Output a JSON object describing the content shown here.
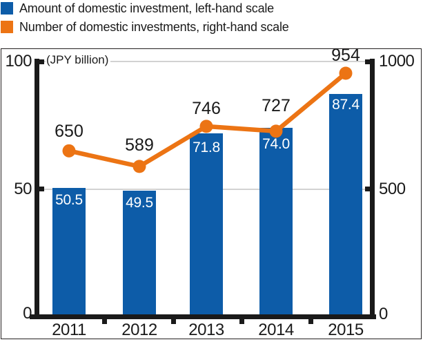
{
  "legend": {
    "items": [
      {
        "id": "amount",
        "label": "Amount of domestic investment, left-hand scale",
        "color": "#0d5ca8"
      },
      {
        "id": "number",
        "label": "Number of domestic investments, right-hand scale",
        "color": "#ec7414"
      }
    ]
  },
  "chart_data": {
    "type": "bar+line",
    "unit_label": "(JPY billion)",
    "categories": [
      "2011",
      "2012",
      "2013",
      "2014",
      "2015"
    ],
    "series": [
      {
        "name": "Amount of domestic investment",
        "type": "bar",
        "axis": "left",
        "color": "#0d5ca8",
        "value_label_color": "#ffffff",
        "values": [
          50.5,
          49.5,
          71.8,
          74.0,
          87.4
        ]
      },
      {
        "name": "Number of domestic investments",
        "type": "line",
        "axis": "right",
        "color": "#ec7414",
        "values": [
          650,
          589,
          746,
          727,
          954
        ]
      }
    ],
    "left_axis": {
      "range": [
        0,
        100
      ],
      "ticks": [
        0,
        50,
        100
      ]
    },
    "right_axis": {
      "range": [
        0,
        1000
      ],
      "ticks": [
        0,
        500,
        1000
      ]
    },
    "grid": true,
    "legend_position": "top-left",
    "colors": {
      "axis": "#1a1a1a",
      "gridline": "#d2d2d2",
      "frame_border": "#231f20",
      "background": "#ffffff"
    }
  }
}
